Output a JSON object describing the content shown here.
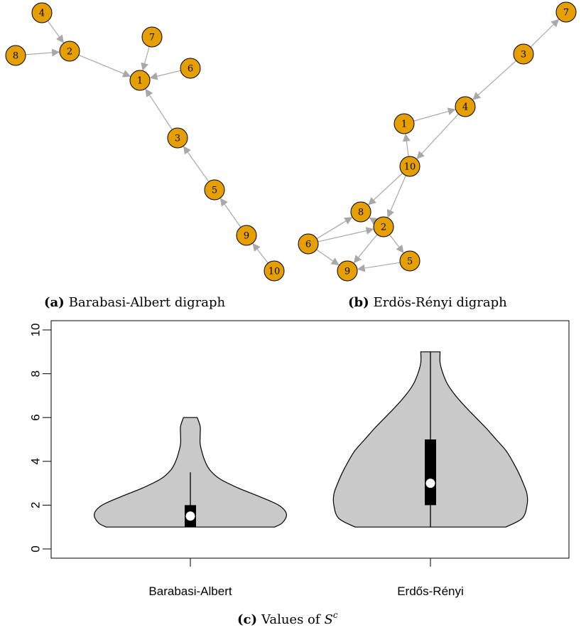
{
  "graphs": [
    {
      "id": "a",
      "caption_label": "(a)",
      "caption_text": "Barabasi-Albert digraph",
      "nodes": [
        "4",
        "8",
        "2",
        "7",
        "6",
        "1",
        "3",
        "5",
        "9",
        "10"
      ],
      "edges": [
        [
          "4",
          "2"
        ],
        [
          "8",
          "2"
        ],
        [
          "2",
          "1"
        ],
        [
          "7",
          "1"
        ],
        [
          "6",
          "1"
        ],
        [
          "3",
          "1"
        ],
        [
          "5",
          "3"
        ],
        [
          "9",
          "5"
        ],
        [
          "10",
          "9"
        ]
      ]
    },
    {
      "id": "b",
      "caption_label": "(b)",
      "caption_text": "Erdös-Rényi digraph",
      "nodes": [
        "7",
        "3",
        "4",
        "1",
        "10",
        "8",
        "2",
        "6",
        "5",
        "9"
      ],
      "edges": [
        [
          "3",
          "7"
        ],
        [
          "3",
          "4"
        ],
        [
          "1",
          "4"
        ],
        [
          "4",
          "10"
        ],
        [
          "10",
          "1"
        ],
        [
          "10",
          "8"
        ],
        [
          "10",
          "2"
        ],
        [
          "2",
          "8"
        ],
        [
          "6",
          "8"
        ],
        [
          "6",
          "2"
        ],
        [
          "6",
          "9"
        ],
        [
          "2",
          "9"
        ],
        [
          "2",
          "5"
        ],
        [
          "5",
          "9"
        ]
      ]
    }
  ],
  "chart_data": {
    "type": "violin",
    "caption_label": "(c)",
    "caption_text": "Values of",
    "caption_math": "S",
    "caption_sup": "c",
    "categories": [
      "Barabasi-Albert",
      "Erdős-Rényi"
    ],
    "ylim": [
      0,
      10
    ],
    "yticks": [
      "0",
      "2",
      "4",
      "6",
      "8",
      "10"
    ],
    "series": [
      {
        "category": "Barabasi-Albert",
        "min": 1,
        "max": 6,
        "q1": 1,
        "median": 1.5,
        "q3": 2,
        "whisker_low": 1,
        "whisker_high": 3.5,
        "density": [
          [
            1,
            0.86
          ],
          [
            1.2,
            0.94
          ],
          [
            1.6,
            0.98
          ],
          [
            2,
            0.9
          ],
          [
            2.4,
            0.7
          ],
          [
            2.8,
            0.48
          ],
          [
            3.2,
            0.3
          ],
          [
            3.6,
            0.2
          ],
          [
            4,
            0.15
          ],
          [
            4.4,
            0.12
          ],
          [
            4.8,
            0.1
          ],
          [
            5.2,
            0.1
          ],
          [
            5.6,
            0.1
          ],
          [
            6,
            0.07
          ]
        ]
      },
      {
        "category": "Erdős-Rényi",
        "min": 1,
        "max": 9,
        "q1": 2,
        "median": 3,
        "q3": 5,
        "whisker_low": 1,
        "whisker_high": 9,
        "density": [
          [
            1,
            0.78
          ],
          [
            1.4,
            0.95
          ],
          [
            2,
            1
          ],
          [
            2.5,
            1
          ],
          [
            3,
            0.96
          ],
          [
            3.5,
            0.91
          ],
          [
            4,
            0.85
          ],
          [
            4.5,
            0.78
          ],
          [
            5,
            0.68
          ],
          [
            5.5,
            0.58
          ],
          [
            6,
            0.47
          ],
          [
            6.5,
            0.36
          ],
          [
            7,
            0.26
          ],
          [
            7.5,
            0.18
          ],
          [
            8,
            0.13
          ],
          [
            8.5,
            0.1
          ],
          [
            9,
            0.1
          ]
        ]
      }
    ]
  }
}
